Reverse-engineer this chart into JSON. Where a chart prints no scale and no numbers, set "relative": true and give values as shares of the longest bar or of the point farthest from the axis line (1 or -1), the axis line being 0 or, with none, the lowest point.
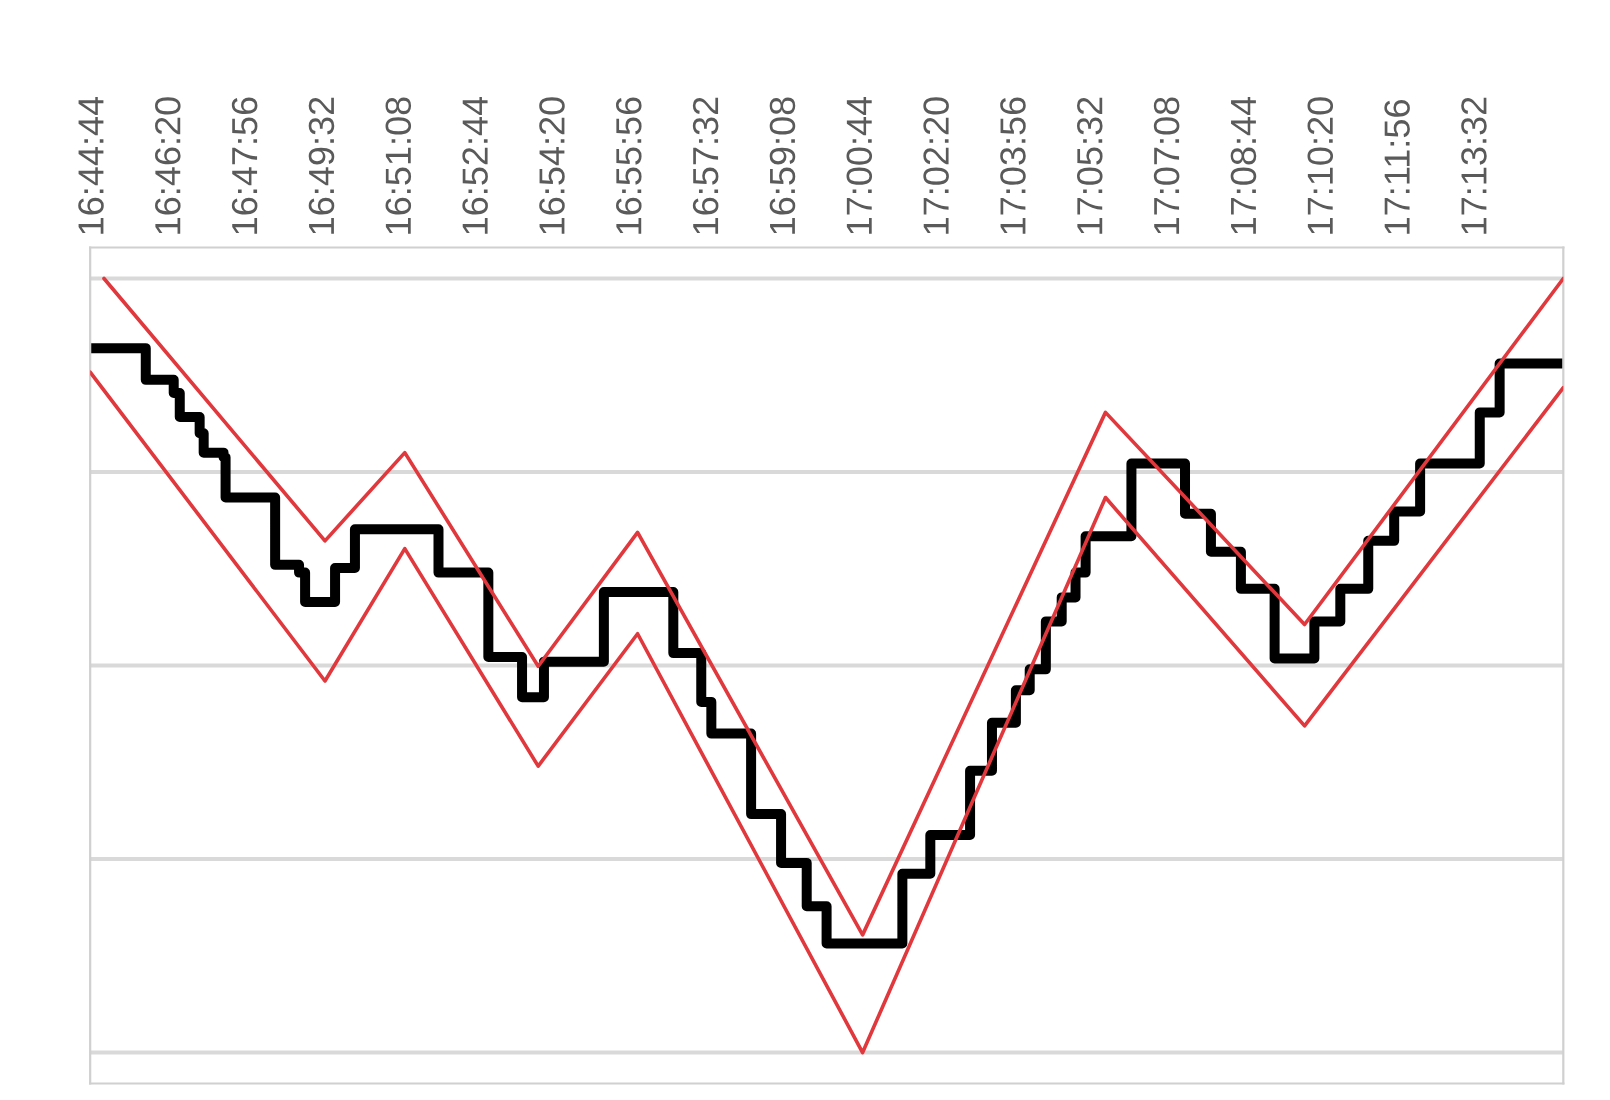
{
  "chart_data": {
    "type": "line",
    "relative": true,
    "grid": "y",
    "legend": false,
    "xlim": [
      16.7442,
      17.2555
    ],
    "xticks": [
      {
        "value": 16.74556,
        "label": "16:44:44"
      },
      {
        "value": 16.77222,
        "label": "16:46:20"
      },
      {
        "value": 16.79889,
        "label": "16:47:56"
      },
      {
        "value": 16.82556,
        "label": "16:49:32"
      },
      {
        "value": 16.85222,
        "label": "16:51:08"
      },
      {
        "value": 16.87889,
        "label": "16:52:44"
      },
      {
        "value": 16.90556,
        "label": "16:54:20"
      },
      {
        "value": 16.93222,
        "label": "16:55:56"
      },
      {
        "value": 16.95889,
        "label": "16:57:32"
      },
      {
        "value": 16.98556,
        "label": "16:59:08"
      },
      {
        "value": 17.01222,
        "label": "17:00:44"
      },
      {
        "value": 17.03889,
        "label": "17:02:20"
      },
      {
        "value": 17.06556,
        "label": "17:03:56"
      },
      {
        "value": 17.09222,
        "label": "17:05:32"
      },
      {
        "value": 17.11889,
        "label": "17:07:08"
      },
      {
        "value": 17.14556,
        "label": "17:08:44"
      },
      {
        "value": 17.17222,
        "label": "17:10:20"
      },
      {
        "value": 17.19889,
        "label": "17:11:56"
      },
      {
        "value": 17.22556,
        "label": "17:13:32"
      }
    ],
    "series": [
      {
        "type": "step",
        "color": "#000000",
        "x": [
          16.7442,
          16.7635,
          16.7732,
          16.7753,
          16.7822,
          16.7836,
          16.7905,
          16.7912,
          16.8084,
          16.8167,
          16.8188,
          16.8292,
          16.8361,
          16.8651,
          16.8824,
          16.8941,
          16.9017,
          16.9225,
          16.9466,
          16.9563,
          16.9598,
          16.9736,
          16.984,
          16.9929,
          16.9998,
          17.0261,
          17.0358,
          17.0496,
          17.0572,
          17.0655,
          17.0703,
          17.0759,
          17.0814,
          17.0862,
          17.0897,
          17.1056,
          17.1242,
          17.1332,
          17.1436,
          17.1553,
          17.1691,
          17.1781,
          17.1878,
          17.1968,
          17.2058,
          17.2265,
          17.2334,
          17.2555
        ],
        "values": [
          0.91,
          0.869,
          0.852,
          0.821,
          0.8,
          0.775,
          0.769,
          0.717,
          0.63,
          0.62,
          0.582,
          0.626,
          0.676,
          0.62,
          0.511,
          0.459,
          0.505,
          0.595,
          0.516,
          0.453,
          0.412,
          0.308,
          0.245,
          0.189,
          0.141,
          0.231,
          0.281,
          0.364,
          0.426,
          0.468,
          0.495,
          0.557,
          0.588,
          0.62,
          0.667,
          0.761,
          0.696,
          0.647,
          0.599,
          0.509,
          0.557,
          0.599,
          0.661,
          0.699,
          0.761,
          0.827,
          0.89,
          0.89
        ]
      },
      {
        "color": "#e0383c",
        "x": [
          16.749,
          16.8257,
          16.8534,
          16.8997,
          16.9342,
          17.0123,
          17.0966,
          17.1657,
          17.2555
        ],
        "values": [
          1.0,
          0.661,
          0.775,
          0.499,
          0.672,
          0.152,
          0.827,
          0.553,
          1.0
        ]
      },
      {
        "color": "#e0383c",
        "x": [
          16.7442,
          16.8257,
          16.8534,
          16.8997,
          16.9342,
          17.0123,
          17.0966,
          17.1657,
          17.2555
        ],
        "values": [
          0.879,
          0.48,
          0.651,
          0.37,
          0.541,
          0.0,
          0.717,
          0.422,
          0.859
        ]
      }
    ]
  }
}
